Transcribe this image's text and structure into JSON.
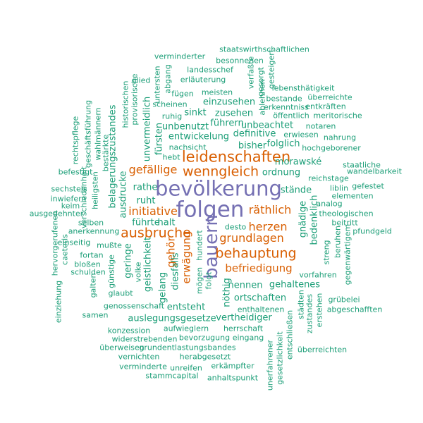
{
  "colors": {
    "big": "#7570b3",
    "mid": "#d95f02",
    "small": "#1b9e77"
  },
  "words": [
    {
      "text": "bevölkerung",
      "tier": "big"
    },
    {
      "text": "folgen",
      "tier": "big"
    },
    {
      "text": "bauern",
      "tier": "big"
    },
    {
      "text": "leidenschaften",
      "tier": "mid"
    },
    {
      "text": "wenngleich",
      "tier": "mid"
    },
    {
      "text": "ausbruche",
      "tier": "mid"
    },
    {
      "text": "behauptung",
      "tier": "mid"
    },
    {
      "text": "gefällige",
      "tier": "mid"
    },
    {
      "text": "initiative",
      "tier": "mid"
    },
    {
      "text": "räthlich",
      "tier": "mid"
    },
    {
      "text": "herzen",
      "tier": "mid"
    },
    {
      "text": "grundlagen",
      "tier": "mid"
    },
    {
      "text": "befriedigung",
      "tier": "mid"
    },
    {
      "text": "gehör",
      "tier": "mid"
    },
    {
      "text": "erwägung",
      "tier": "mid"
    },
    {
      "text": "staatswirthschaftlichen",
      "tier": "small"
    },
    {
      "text": "verminderter",
      "tier": "small"
    },
    {
      "text": "besonnenen",
      "tier": "small"
    },
    {
      "text": "landesschef",
      "tier": "small"
    },
    {
      "text": "erläuterung",
      "tier": "small"
    },
    {
      "text": "meisten",
      "tier": "small"
    },
    {
      "text": "fügen",
      "tier": "small"
    },
    {
      "text": "scheinen",
      "tier": "small"
    },
    {
      "text": "glied",
      "tier": "small"
    },
    {
      "text": "untersten",
      "tier": "small"
    },
    {
      "text": "abgang",
      "tier": "small"
    },
    {
      "text": "verfaßte",
      "tier": "small"
    },
    {
      "text": "gesorgt",
      "tier": "small"
    },
    {
      "text": "gesteigert",
      "tier": "small"
    },
    {
      "text": "lebensthätigkeit",
      "tier": "small"
    },
    {
      "text": "bestande",
      "tier": "small"
    },
    {
      "text": "überreichte",
      "tier": "small"
    },
    {
      "text": "erkenntniss",
      "tier": "small"
    },
    {
      "text": "entkräften",
      "tier": "small"
    },
    {
      "text": "öffentlich",
      "tier": "small"
    },
    {
      "text": "meritorische",
      "tier": "small"
    },
    {
      "text": "notaren",
      "tier": "small"
    },
    {
      "text": "erwiesen",
      "tier": "small"
    },
    {
      "text": "nahrung",
      "tier": "small"
    },
    {
      "text": "hochgeborener",
      "tier": "small"
    },
    {
      "text": "ablehnen",
      "tier": "small"
    },
    {
      "text": "ruhig",
      "tier": "small"
    },
    {
      "text": "einzusehen",
      "tier": "small"
    },
    {
      "text": "sinkt",
      "tier": "small"
    },
    {
      "text": "zusehen",
      "tier": "small"
    },
    {
      "text": "unbenutzt",
      "tier": "small"
    },
    {
      "text": "führern",
      "tier": "small"
    },
    {
      "text": "unbeachtet",
      "tier": "small"
    },
    {
      "text": "entwickelung",
      "tier": "small"
    },
    {
      "text": "definitive",
      "tier": "small"
    },
    {
      "text": "folglich",
      "tier": "small"
    },
    {
      "text": "bisher",
      "tier": "small"
    },
    {
      "text": "hebt",
      "tier": "small"
    },
    {
      "text": "nachsicht",
      "tier": "small"
    },
    {
      "text": "morawské",
      "tier": "small"
    },
    {
      "text": "rechtspflege",
      "tier": "small"
    },
    {
      "text": "geschäftsführung",
      "tier": "small"
    },
    {
      "text": "wahlmännern",
      "tier": "small"
    },
    {
      "text": "verschiedenheit",
      "tier": "small"
    },
    {
      "text": "bestärkte",
      "tier": "small"
    },
    {
      "text": "historischen",
      "tier": "small"
    },
    {
      "text": "provisorische",
      "tier": "small"
    },
    {
      "text": "belagerungszustandes",
      "tier": "small"
    },
    {
      "text": "unvermeidlich",
      "tier": "small"
    },
    {
      "text": "fürsten",
      "tier": "small"
    },
    {
      "text": "befestigt",
      "tier": "small"
    },
    {
      "text": "ordnung",
      "tier": "small"
    },
    {
      "text": "reichstage",
      "tier": "small"
    },
    {
      "text": "staatliche",
      "tier": "small"
    },
    {
      "text": "wandelbarkeit",
      "tier": "small"
    },
    {
      "text": "sechstels",
      "tier": "small"
    },
    {
      "text": "inwiefern",
      "tier": "small"
    },
    {
      "text": "keim",
      "tier": "small"
    },
    {
      "text": "ausgedehnter",
      "tier": "small"
    },
    {
      "text": "heiligsten",
      "tier": "small"
    },
    {
      "text": "rathe",
      "tier": "small"
    },
    {
      "text": "ruht",
      "tier": "small"
    },
    {
      "text": "ausdrucke",
      "tier": "small"
    },
    {
      "text": "stände",
      "tier": "small"
    },
    {
      "text": "liblin",
      "tier": "small"
    },
    {
      "text": "gefestet",
      "tier": "small"
    },
    {
      "text": "elementen",
      "tier": "small"
    },
    {
      "text": "analog",
      "tier": "small"
    },
    {
      "text": "theologischen",
      "tier": "small"
    },
    {
      "text": "beitritt",
      "tier": "small"
    },
    {
      "text": "pfundgeld",
      "tier": "small"
    },
    {
      "text": "führte",
      "tier": "small"
    },
    {
      "text": "halt",
      "tier": "small"
    },
    {
      "text": "gnädige",
      "tier": "small"
    },
    {
      "text": "bedenklich",
      "tier": "small"
    },
    {
      "text": "hervorgerufenen",
      "tier": "small"
    },
    {
      "text": "caeteris",
      "tier": "small"
    },
    {
      "text": "selben",
      "tier": "small"
    },
    {
      "text": "anerkennung",
      "tier": "small"
    },
    {
      "text": "desto",
      "tier": "small"
    },
    {
      "text": "einseitig",
      "tier": "small"
    },
    {
      "text": "mußte",
      "tier": "small"
    },
    {
      "text": "fortan",
      "tier": "small"
    },
    {
      "text": "bloßen",
      "tier": "small"
    },
    {
      "text": "schulden",
      "tier": "small"
    },
    {
      "text": "geringe",
      "tier": "small"
    },
    {
      "text": "geistlichkeit",
      "tier": "small"
    },
    {
      "text": "volke",
      "tier": "small"
    },
    {
      "text": "günstige",
      "tier": "small"
    },
    {
      "text": "gelang",
      "tier": "small"
    },
    {
      "text": "diesfalls",
      "tier": "small"
    },
    {
      "text": "mögen",
      "tier": "small"
    },
    {
      "text": "folgt",
      "tier": "small"
    },
    {
      "text": "hundert",
      "tier": "small"
    },
    {
      "text": "streng",
      "tier": "small"
    },
    {
      "text": "beruhen",
      "tier": "small"
    },
    {
      "text": "gegenwärtigem",
      "tier": "small"
    },
    {
      "text": "vorfahren",
      "tier": "small"
    },
    {
      "text": "gehaltenes",
      "tier": "small"
    },
    {
      "text": "nennen",
      "tier": "small"
    },
    {
      "text": "nöthig",
      "tier": "small"
    },
    {
      "text": "einziehung",
      "tier": "small"
    },
    {
      "text": "galten",
      "tier": "small"
    },
    {
      "text": "glaubt",
      "tier": "small"
    },
    {
      "text": "entsteht",
      "tier": "small"
    },
    {
      "text": "ortschaften",
      "tier": "small"
    },
    {
      "text": "grübelei",
      "tier": "small"
    },
    {
      "text": "abgeschafften",
      "tier": "small"
    },
    {
      "text": "genossenschaft",
      "tier": "small"
    },
    {
      "text": "samen",
      "tier": "small"
    },
    {
      "text": "auslegungsgesetze",
      "tier": "small"
    },
    {
      "text": "vertheidiger",
      "tier": "small"
    },
    {
      "text": "enthaltenen",
      "tier": "small"
    },
    {
      "text": "städten",
      "tier": "small"
    },
    {
      "text": "erstehen",
      "tier": "small"
    },
    {
      "text": "konzession",
      "tier": "small"
    },
    {
      "text": "aufwieglern",
      "tier": "small"
    },
    {
      "text": "herrschaft",
      "tier": "small"
    },
    {
      "text": "widerstrebenden",
      "tier": "small"
    },
    {
      "text": "bevorzugung",
      "tier": "small"
    },
    {
      "text": "eingang",
      "tier": "small"
    },
    {
      "text": "entschließen",
      "tier": "small"
    },
    {
      "text": "zustandes",
      "tier": "small"
    },
    {
      "text": "überweisen",
      "tier": "small"
    },
    {
      "text": "grundentlastungsbandes",
      "tier": "small"
    },
    {
      "text": "überreichten",
      "tier": "small"
    },
    {
      "text": "vernichten",
      "tier": "small"
    },
    {
      "text": "herabgesetzt",
      "tier": "small"
    },
    {
      "text": "gesetzlichkeit",
      "tier": "small"
    },
    {
      "text": "verminderte",
      "tier": "small"
    },
    {
      "text": "unreifen",
      "tier": "small"
    },
    {
      "text": "erkämpfter",
      "tier": "small"
    },
    {
      "text": "stammcapital",
      "tier": "small"
    },
    {
      "text": "anhaltspunkt",
      "tier": "small"
    },
    {
      "text": "unerfahrener",
      "tier": "small"
    }
  ]
}
